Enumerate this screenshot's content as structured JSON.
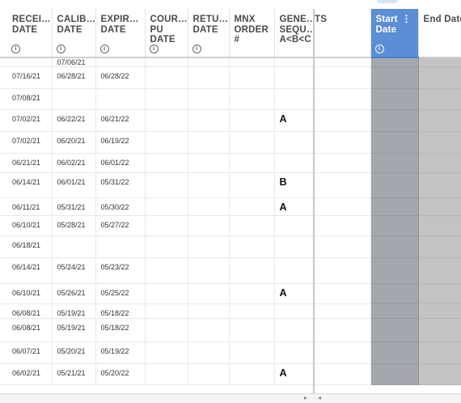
{
  "frozen_headers": [
    {
      "key": "received_date",
      "label": "RECEI…\nDATE"
    },
    {
      "key": "calibration_date",
      "label": "CALIB…\nDATE"
    },
    {
      "key": "expiration_date",
      "label": "EXPIR…\nDATE"
    },
    {
      "key": "courier_pu_date",
      "label": "COUR…\nPU\nDATE"
    },
    {
      "key": "return_date",
      "label": "RETU…\nDATE"
    },
    {
      "key": "mnx_order",
      "label": "MNX\nORDER\n#"
    },
    {
      "key": "generator_sequence",
      "label": "GENE…\nSEQU…\nA<B<C"
    }
  ],
  "scroll_headers": {
    "partial": "TS",
    "start": "Start\nDate",
    "end": "End Date"
  },
  "info_glyph": "i",
  "kebab_glyph": "⋮",
  "rows": [
    {
      "received": "",
      "calibration": "07/06/21",
      "expiration": "",
      "seq": ""
    },
    {
      "received": "07/16/21",
      "calibration": "06/28/21",
      "expiration": "06/28/22",
      "seq": ""
    },
    {
      "received": "07/08/21",
      "calibration": "",
      "expiration": "",
      "seq": ""
    },
    {
      "received": "07/02/21",
      "calibration": "06/22/21",
      "expiration": "06/21/22",
      "seq": "A"
    },
    {
      "received": "07/02/21",
      "calibration": "06/20/21",
      "expiration": "06/19/22",
      "seq": ""
    },
    {
      "received": "06/21/21",
      "calibration": "06/02/21",
      "expiration": "06/01/22",
      "seq": ""
    },
    {
      "received": "06/14/21",
      "calibration": "06/01/21",
      "expiration": "05/31/22",
      "seq": "B"
    },
    {
      "received": "06/11/21",
      "calibration": "05/31/21",
      "expiration": "05/30/22",
      "seq": "A"
    },
    {
      "received": "06/10/21",
      "calibration": "05/28/21",
      "expiration": "05/27/22",
      "seq": ""
    },
    {
      "received": "06/18/21",
      "calibration": "",
      "expiration": "",
      "seq": ""
    },
    {
      "received": "06/14/21",
      "calibration": "05/24/21",
      "expiration": "05/23/22",
      "seq": ""
    },
    {
      "received": "06/10/21",
      "calibration": "05/26/21",
      "expiration": "05/25/22",
      "seq": "A"
    },
    {
      "received": "06/08/21",
      "calibration": "05/19/21",
      "expiration": "05/18/22",
      "seq": ""
    },
    {
      "received": "06/08/21",
      "calibration": "05/19/21",
      "expiration": "05/18/22",
      "seq": ""
    },
    {
      "received": "06/07/21",
      "calibration": "05/20/21",
      "expiration": "05/19/22",
      "seq": ""
    },
    {
      "received": "06/02/21",
      "calibration": "05/21/21",
      "expiration": "05/20/22",
      "seq": "A"
    }
  ],
  "scroll_arrows": {
    "right": "▸",
    "left": "◂"
  },
  "colors": {
    "start_header": "#5b8ed4",
    "start_column": "#a2a8ae",
    "end_column": "#c3c3c3"
  }
}
